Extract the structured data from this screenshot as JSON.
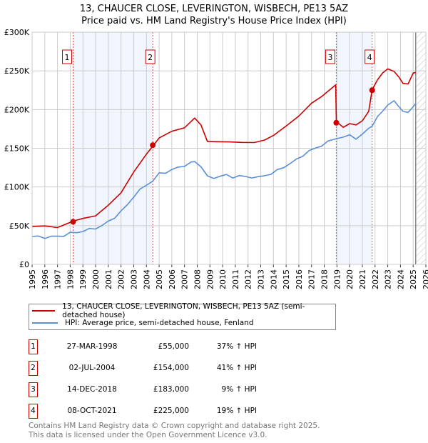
{
  "title_line1": "13, CHAUCER CLOSE, LEVERINGTON, WISBECH, PE13 5AZ",
  "title_line2": "Price paid vs. HM Land Registry's House Price Index (HPI)",
  "chart_data": {
    "type": "line",
    "ylim": [
      0,
      300000
    ],
    "xlim": [
      1995,
      2026
    ],
    "y_ticks": [
      0,
      50000,
      100000,
      150000,
      200000,
      250000,
      300000
    ],
    "y_tick_labels": [
      "£0",
      "£50K",
      "£100K",
      "£150K",
      "£200K",
      "£250K",
      "£300K"
    ],
    "x_ticks": [
      "1995",
      "1996",
      "1997",
      "1998",
      "1999",
      "2000",
      "2001",
      "2002",
      "2003",
      "2004",
      "2005",
      "2006",
      "2007",
      "2008",
      "2009",
      "2010",
      "2011",
      "2012",
      "2013",
      "2014",
      "2015",
      "2016",
      "2017",
      "2018",
      "2019",
      "2020",
      "2021",
      "2022",
      "2023",
      "2024",
      "2025",
      "2026"
    ],
    "grid": true,
    "data_end": 2025.2,
    "series": [
      {
        "name": "HPI: Average price, semi-detached house, Fenland",
        "color": "#5b8fd6",
        "x": [
          1995,
          1995.5,
          1996,
          1996.5,
          1997,
          1997.5,
          1998,
          1998.5,
          1999,
          1999.5,
          2000,
          2000.5,
          2001,
          2001.5,
          2002,
          2002.5,
          2003,
          2003.5,
          2004,
          2004.5,
          2005,
          2005.5,
          2006,
          2006.5,
          2007,
          2007.5,
          2007.8,
          2008.3,
          2008.8,
          2009.3,
          2009.8,
          2010.3,
          2010.8,
          2011.3,
          2011.8,
          2012.3,
          2012.8,
          2013.3,
          2013.8,
          2014.3,
          2014.8,
          2015.3,
          2015.8,
          2016.3,
          2016.8,
          2017.3,
          2017.8,
          2018.3,
          2018.95,
          2019.5,
          2020,
          2020.5,
          2021,
          2021.5,
          2021.77,
          2022.2,
          2022.6,
          2023,
          2023.5,
          2023.9,
          2024.2,
          2024.6,
          2025,
          2025.2
        ],
        "y": [
          36000,
          35500,
          35000,
          35500,
          36000,
          37500,
          40000,
          41500,
          43000,
          45000,
          47000,
          50000,
          55000,
          61000,
          68000,
          77000,
          88000,
          96000,
          103000,
          108000,
          117000,
          119000,
          122000,
          125000,
          128000,
          131000,
          133000,
          127000,
          113000,
          112000,
          114000,
          115000,
          113000,
          114000,
          113000,
          113000,
          112000,
          115000,
          117000,
          121000,
          126000,
          130000,
          135000,
          141000,
          146000,
          150000,
          154000,
          158000,
          163000,
          165000,
          166000,
          163000,
          168000,
          175000,
          180000,
          190000,
          198000,
          207000,
          210000,
          204000,
          198000,
          195000,
          205000,
          208000
        ]
      },
      {
        "name": "13, CHAUCER CLOSE, LEVERINGTON, WISBECH, PE13 5AZ (semi-detached house)",
        "color": "#cc0000",
        "x": [
          1995,
          1996,
          1997,
          1998.23,
          1999,
          2000,
          2001,
          2002,
          2003,
          2004,
          2004.5,
          2005,
          2006,
          2007,
          2007.8,
          2008.3,
          2008.8,
          2009.5,
          2010.5,
          2011.5,
          2012.5,
          2013.3,
          2014,
          2015,
          2016,
          2017,
          2017.8,
          2018.9,
          2018.95,
          2019.5,
          2020,
          2020.5,
          2021,
          2021.5,
          2021.77,
          2022.2,
          2022.6,
          2023,
          2023.5,
          2023.9,
          2024.2,
          2024.6,
          2025,
          2025.2
        ],
        "y": [
          49000,
          48500,
          49000,
          55000,
          59000,
          64000,
          75000,
          93000,
          120000,
          141000,
          154000,
          163000,
          171000,
          178000,
          188000,
          180000,
          160000,
          157000,
          159000,
          158000,
          156000,
          162000,
          166000,
          178000,
          193000,
          207000,
          217000,
          233000,
          183000,
          178000,
          182000,
          179000,
          187000,
          197000,
          225000,
          240000,
          246000,
          253000,
          250000,
          240000,
          235000,
          233000,
          246000,
          248000
        ]
      }
    ],
    "sales": [
      {
        "label": "1",
        "x": 1998.23,
        "y": 55000
      },
      {
        "label": "2",
        "x": 2004.5,
        "y": 154000
      },
      {
        "label": "3",
        "x": 2018.95,
        "y": 183000
      },
      {
        "label": "4",
        "x": 2021.77,
        "y": 225000
      }
    ],
    "shaded_ranges": [
      [
        1998.23,
        2004.5
      ],
      [
        2018.95,
        2021.77
      ]
    ]
  },
  "legend": [
    {
      "label": "13, CHAUCER CLOSE, LEVERINGTON, WISBECH, PE13 5AZ (semi-detached house)",
      "color": "#cc0000"
    },
    {
      "label": "HPI: Average price, semi-detached house, Fenland",
      "color": "#5b8fd6"
    }
  ],
  "table": [
    {
      "num": "1",
      "date": "27-MAR-1998",
      "price": "£55,000",
      "hpi": "37% ↑ HPI"
    },
    {
      "num": "2",
      "date": "02-JUL-2004",
      "price": "£154,000",
      "hpi": "41% ↑ HPI"
    },
    {
      "num": "3",
      "date": "14-DEC-2018",
      "price": "£183,000",
      "hpi": "9% ↑ HPI"
    },
    {
      "num": "4",
      "date": "08-OCT-2021",
      "price": "£225,000",
      "hpi": "19% ↑ HPI"
    }
  ],
  "footer_line1": "Contains HM Land Registry data © Crown copyright and database right 2025.",
  "footer_line2": "This data is licensed under the Open Government Licence v3.0."
}
